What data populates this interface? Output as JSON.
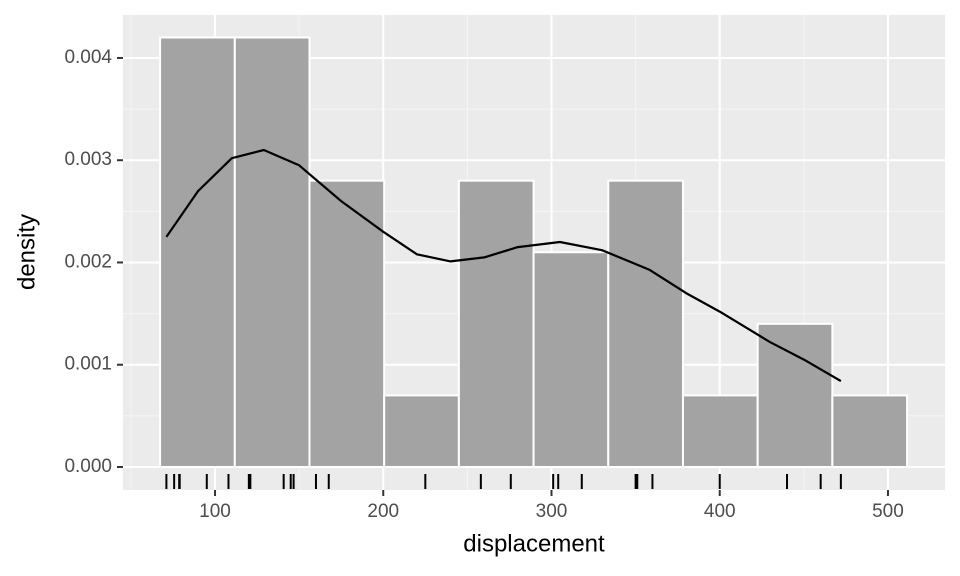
{
  "chart_data": {
    "type": "histogram",
    "x_label": "displacement",
    "y_label": "density",
    "bins": [
      67.35,
      111.75,
      156.15,
      200.55,
      244.95,
      289.35,
      333.75,
      378.15,
      422.55,
      466.95,
      511.35
    ],
    "values": [
      0.0042,
      0.0042,
      0.0028,
      0.0007,
      0.0028,
      0.0021,
      0.0028,
      0.0007,
      0.0014,
      0.0007
    ],
    "color": "#a3a3a3",
    "edge_color": "#ffffff",
    "density_curve": {
      "color": "#000000",
      "x": [
        71.1,
        90,
        110,
        129,
        150,
        175,
        200,
        220,
        240,
        260,
        280,
        305,
        330,
        358,
        380,
        400,
        430,
        450,
        472
      ],
      "y": [
        0.00225,
        0.0027,
        0.00302,
        0.0031,
        0.00295,
        0.0026,
        0.0023,
        0.00208,
        0.00201,
        0.00205,
        0.00215,
        0.0022,
        0.00212,
        0.00193,
        0.0017,
        0.00152,
        0.00122,
        0.00105,
        0.00084
      ]
    },
    "rug": [
      71.1,
      75.7,
      78.7,
      79,
      95.1,
      108,
      120.1,
      120.3,
      121,
      140.8,
      145,
      146.7,
      160,
      167.6,
      225,
      258,
      275.8,
      301,
      304,
      318,
      350,
      351,
      360,
      400,
      440,
      460,
      472
    ],
    "xlim": [
      45.3,
      533.9
    ],
    "ylim": [
      -0.000225,
      0.00442
    ],
    "xticks": [
      100,
      200,
      300,
      400,
      500
    ],
    "yticks": [
      {
        "value": 0,
        "label": "0.000"
      },
      {
        "value": 0.001,
        "label": "0.001"
      },
      {
        "value": 0.002,
        "label": "0.002"
      },
      {
        "value": 0.003,
        "label": "0.003"
      },
      {
        "value": 0.004,
        "label": "0.004"
      }
    ],
    "grid": true
  }
}
